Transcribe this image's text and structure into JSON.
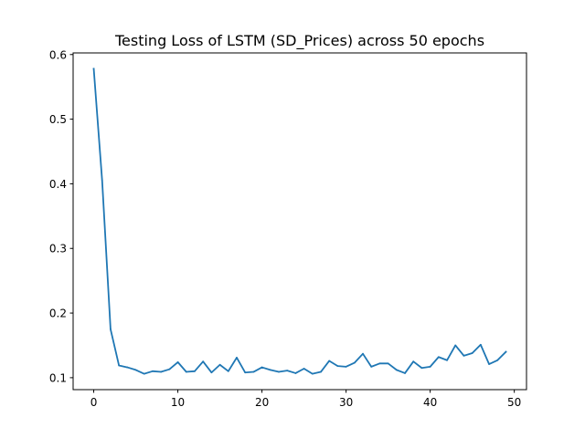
{
  "chart_data": {
    "type": "line",
    "title": "Testing Loss of LSTM (SD_Prices) across 50 epochs",
    "xlabel": "",
    "ylabel": "",
    "xlim": [
      -2.45,
      51.45
    ],
    "ylim": [
      0.0815,
      0.6025
    ],
    "xticks": [
      0,
      10,
      20,
      30,
      40,
      50
    ],
    "xtick_labels": [
      "0",
      "10",
      "20",
      "30",
      "40",
      "50"
    ],
    "yticks": [
      0.1,
      0.2,
      0.3,
      0.4,
      0.5,
      0.6
    ],
    "ytick_labels": [
      "0.1",
      "0.2",
      "0.3",
      "0.4",
      "0.5",
      "0.6"
    ],
    "grid": false,
    "legend": "none",
    "series": [
      {
        "color": "#1f77b4",
        "x": [
          0,
          1,
          2,
          3,
          4,
          5,
          6,
          7,
          8,
          9,
          10,
          11,
          12,
          13,
          14,
          15,
          16,
          17,
          18,
          19,
          20,
          21,
          22,
          23,
          24,
          25,
          26,
          27,
          28,
          29,
          30,
          31,
          32,
          33,
          34,
          35,
          36,
          37,
          38,
          39,
          40,
          41,
          42,
          43,
          44,
          45,
          46,
          47,
          48,
          49
        ],
        "y": [
          0.578,
          0.405,
          0.175,
          0.119,
          0.116,
          0.112,
          0.106,
          0.11,
          0.109,
          0.113,
          0.124,
          0.109,
          0.11,
          0.125,
          0.108,
          0.12,
          0.11,
          0.131,
          0.108,
          0.109,
          0.116,
          0.112,
          0.109,
          0.111,
          0.107,
          0.114,
          0.106,
          0.109,
          0.126,
          0.118,
          0.117,
          0.123,
          0.137,
          0.117,
          0.122,
          0.122,
          0.112,
          0.107,
          0.125,
          0.115,
          0.117,
          0.132,
          0.127,
          0.15,
          0.134,
          0.138,
          0.151,
          0.121,
          0.127,
          0.14
        ]
      }
    ]
  }
}
